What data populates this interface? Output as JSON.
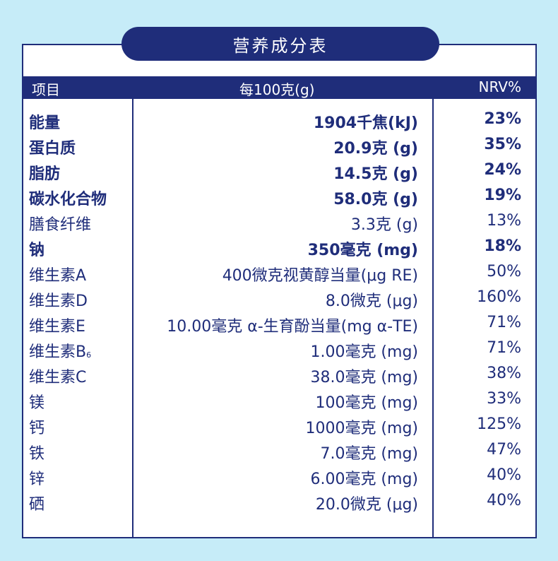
{
  "title": "营养成分表",
  "header": {
    "name": "项目",
    "amount": "每100克(g)",
    "nrv": "NRV%"
  },
  "rows": [
    {
      "name": "能量",
      "amount": "1904千焦(kJ)",
      "nrv": "23%",
      "bold": true
    },
    {
      "name": "蛋白质",
      "amount": "20.9克 (g)",
      "nrv": "35%",
      "bold": true
    },
    {
      "name": "脂肪",
      "amount": "14.5克 (g)",
      "nrv": "24%",
      "bold": true
    },
    {
      "name": "碳水化合物",
      "amount": "58.0克 (g)",
      "nrv": "19%",
      "bold": true
    },
    {
      "name": "膳食纤维",
      "amount": "3.3克 (g)",
      "nrv": "13%",
      "bold": false
    },
    {
      "name": "钠",
      "amount": "350毫克 (mg)",
      "nrv": "18%",
      "bold": true
    },
    {
      "name": "维生素A",
      "amount": "400微克视黄醇当量(μg RE)",
      "nrv": "50%",
      "bold": false
    },
    {
      "name": "维生素D",
      "amount": "8.0微克 (μg)",
      "nrv": "160%",
      "bold": false
    },
    {
      "name": "维生素E",
      "amount": "10.00毫克 α-生育酚当量(mg α-TE)",
      "nrv": "71%",
      "bold": false
    },
    {
      "name": "维生素B",
      "name_sub": "6",
      "amount": "1.00毫克 (mg)",
      "nrv": "71%",
      "bold": false
    },
    {
      "name": "维生素C",
      "amount": "38.0毫克 (mg)",
      "nrv": "38%",
      "bold": false
    },
    {
      "name": "镁",
      "amount": "100毫克 (mg)",
      "nrv": "33%",
      "bold": false
    },
    {
      "name": "钙",
      "amount": "1000毫克 (mg)",
      "nrv": "125%",
      "bold": false
    },
    {
      "name": "铁",
      "amount": "7.0毫克 (mg)",
      "nrv": "47%",
      "bold": false
    },
    {
      "name": "锌",
      "amount": "6.00毫克 (mg)",
      "nrv": "40%",
      "bold": false
    },
    {
      "name": "硒",
      "amount": "20.0微克 (μg)",
      "nrv": "40%",
      "bold": false
    }
  ]
}
